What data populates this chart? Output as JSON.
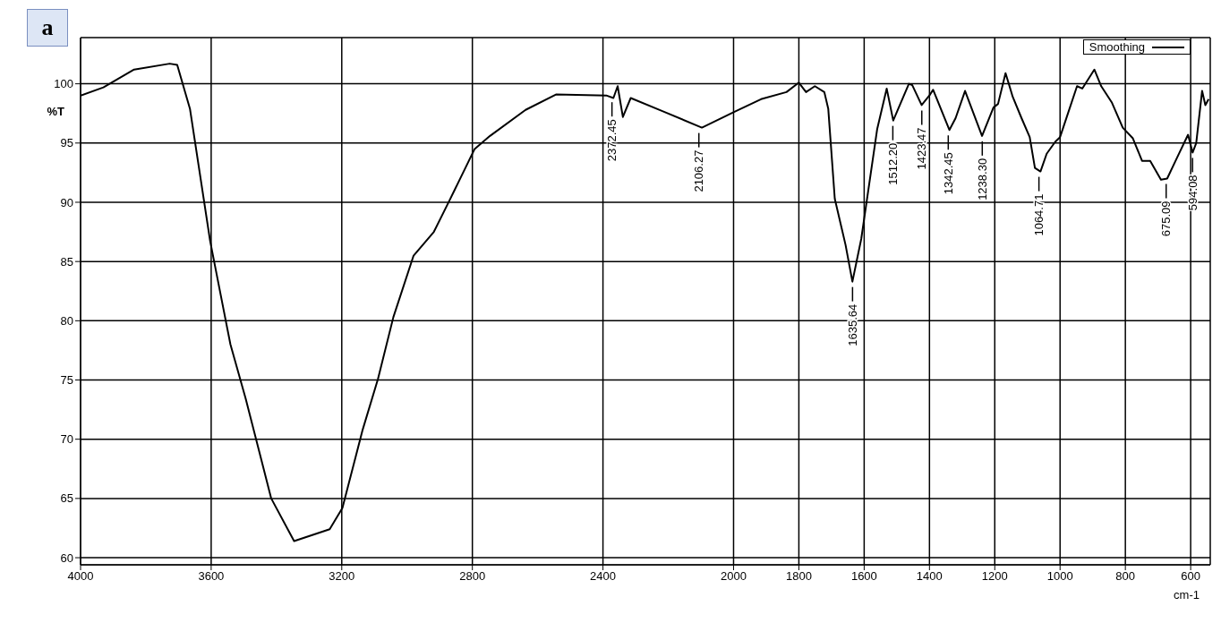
{
  "chart_data": {
    "type": "line",
    "xlabel": "cm-1",
    "ylabel": "%T",
    "x": [
      4000,
      3930,
      3836,
      3727,
      3704,
      3665,
      3603,
      3541,
      3494,
      3416,
      3346,
      3237,
      3198,
      3136,
      3089,
      3042,
      2980,
      2918,
      2871,
      2793,
      2746,
      2637,
      2544,
      2388,
      2368,
      2355,
      2339,
      2315,
      2218,
      2097,
      2000,
      1916,
      1838,
      1800,
      1778,
      1751,
      1722,
      1710,
      1690,
      1657,
      1636,
      1609,
      1560,
      1531,
      1511,
      1463,
      1453,
      1424,
      1398,
      1389,
      1339,
      1320,
      1291,
      1239,
      1204,
      1190,
      1167,
      1157,
      1145,
      1118,
      1093,
      1077,
      1060,
      1041,
      1015,
      1000,
      971,
      948,
      932,
      895,
      874,
      841,
      808,
      777,
      749,
      724,
      691,
      672,
      641,
      608,
      594,
      583,
      565,
      555,
      545
    ],
    "series": [
      {
        "name": "Smoothing",
        "color": "#000000",
        "values": [
          99.0,
          99.7,
          101.2,
          101.7,
          101.6,
          97.9,
          86.7,
          78.0,
          73.4,
          65.0,
          61.4,
          62.4,
          64.2,
          70.8,
          75.1,
          80.3,
          85.5,
          87.5,
          90.1,
          94.5,
          95.6,
          97.8,
          99.1,
          99.0,
          98.8,
          99.8,
          97.2,
          98.8,
          97.7,
          96.3,
          97.6,
          98.7,
          99.3,
          100.1,
          99.3,
          99.8,
          99.3,
          97.9,
          90.3,
          86.4,
          83.3,
          86.9,
          96.2,
          99.6,
          96.9,
          100.0,
          99.9,
          98.2,
          99.1,
          99.5,
          96.1,
          97.1,
          99.4,
          95.6,
          98.0,
          98.3,
          100.9,
          100.0,
          98.9,
          97.1,
          95.5,
          92.9,
          92.6,
          94.1,
          95.1,
          95.5,
          97.9,
          99.8,
          99.6,
          101.2,
          99.8,
          98.4,
          96.3,
          95.4,
          93.5,
          93.5,
          91.9,
          92.0,
          93.8,
          95.7,
          94.2,
          95.0,
          99.4,
          98.2,
          98.7
        ]
      }
    ],
    "xlim": [
      4000,
      540
    ],
    "xticks": [
      4000,
      3600,
      3200,
      2800,
      2400,
      2000,
      1800,
      1600,
      1400,
      1200,
      1000,
      800,
      600
    ],
    "ylim": [
      59.4,
      103.9
    ],
    "yticks": [
      60,
      65,
      70,
      75,
      80,
      85,
      90,
      95,
      100
    ],
    "grid": true,
    "legend": "top right",
    "annotations": [
      "a",
      {
        "text": "2372.45",
        "x": 2372.45,
        "y": 98.9
      },
      {
        "text": "2106.27",
        "x": 2106.27,
        "y": 96.3
      },
      {
        "text": "1635.64",
        "x": 1635.64,
        "y": 83.3
      },
      {
        "text": "1512.20",
        "x": 1512.2,
        "y": 96.9
      },
      {
        "text": "1423.47",
        "x": 1423.47,
        "y": 98.2
      },
      {
        "text": "1342.45",
        "x": 1342.45,
        "y": 96.1
      },
      {
        "text": "1238.30",
        "x": 1238.3,
        "y": 95.6
      },
      {
        "text": "1064.71",
        "x": 1064.71,
        "y": 92.6
      },
      {
        "text": "675.09",
        "x": 675.09,
        "y": 92.0
      },
      {
        "text": "594.08",
        "x": 594.08,
        "y": 94.2
      }
    ]
  }
}
